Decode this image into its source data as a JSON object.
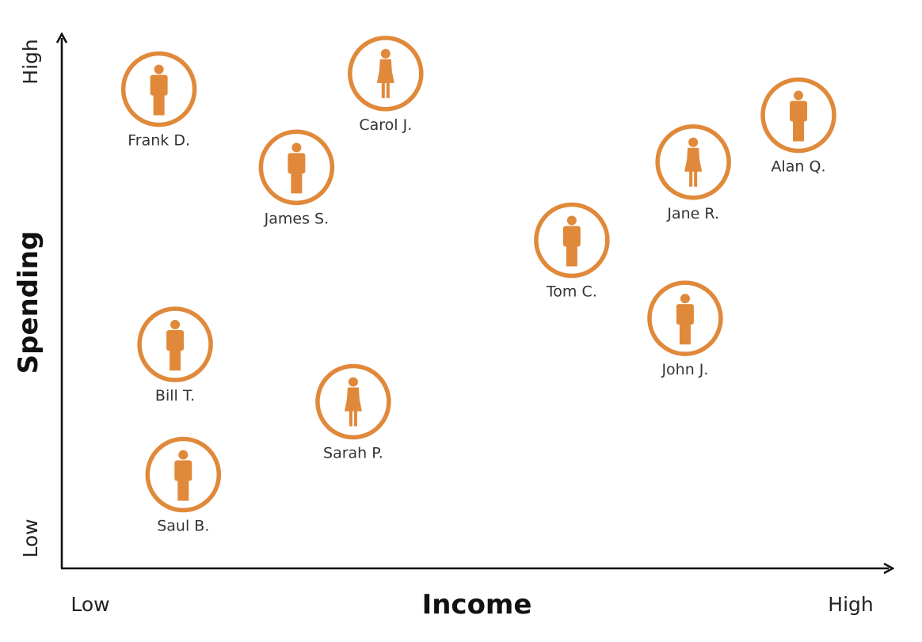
{
  "chart_data": {
    "type": "scatter",
    "xlabel": "Income",
    "ylabel": "Spending",
    "x_ticks": {
      "low": "Low",
      "high": "High"
    },
    "y_ticks": {
      "low": "Low",
      "high": "High"
    },
    "xlim": [
      0,
      10
    ],
    "ylim": [
      0,
      10
    ],
    "grid": false,
    "marker_color": "#e0893a",
    "points": [
      {
        "label": "Frank D.",
        "x": 1.2,
        "y": 9.2,
        "icon": "person-male-icon"
      },
      {
        "label": "Carol J.",
        "x": 4.0,
        "y": 9.5,
        "icon": "person-female-icon"
      },
      {
        "label": "James S.",
        "x": 2.9,
        "y": 7.7,
        "icon": "person-male-icon"
      },
      {
        "label": "Alan Q.",
        "x": 9.1,
        "y": 8.7,
        "icon": "person-male-icon"
      },
      {
        "label": "Jane R.",
        "x": 7.8,
        "y": 7.8,
        "icon": "person-female-icon"
      },
      {
        "label": "Tom C.",
        "x": 6.3,
        "y": 6.3,
        "icon": "person-male-icon"
      },
      {
        "label": "John J.",
        "x": 7.7,
        "y": 4.8,
        "icon": "person-male-icon"
      },
      {
        "label": "Bill T.",
        "x": 1.4,
        "y": 4.3,
        "icon": "person-male-icon"
      },
      {
        "label": "Sarah P.",
        "x": 3.6,
        "y": 3.2,
        "icon": "person-female-icon"
      },
      {
        "label": "Saul B.",
        "x": 1.5,
        "y": 1.8,
        "icon": "person-male-icon"
      }
    ]
  }
}
